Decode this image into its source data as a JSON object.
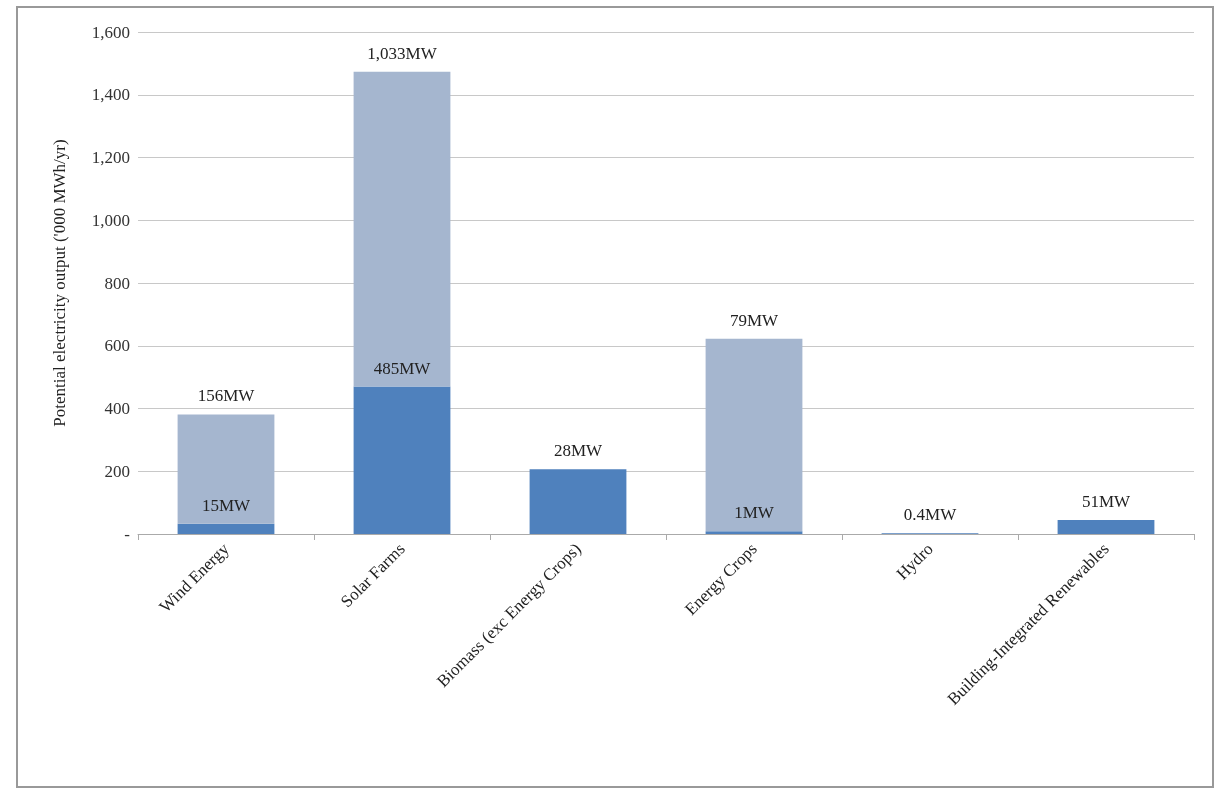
{
  "chart_data": {
    "type": "bar",
    "ylabel": "Potential electricity output ('000 MWh/yr)",
    "categories": [
      "Wind Energy",
      "Solar Farms",
      "Biomass (exc Energy Crops)",
      "Energy Crops",
      "Hydro",
      "Building-Integrated Renewables"
    ],
    "stacked": true,
    "series": [
      {
        "color": "#4f81bd",
        "values": [
          33,
          470,
          206,
          9,
          2,
          45
        ]
      },
      {
        "color": "#a5b6cf",
        "values": [
          348,
          1003,
          null,
          613,
          null,
          null
        ]
      }
    ],
    "annotations": [
      {
        "text": "15MW",
        "x": "Wind Energy",
        "y": 33
      },
      {
        "text": "156MW",
        "x": "Wind Energy",
        "y": 381
      },
      {
        "text": "485MW",
        "x": "Solar Farms",
        "y": 470
      },
      {
        "text": "1,033MW",
        "x": "Solar Farms",
        "y": 1473
      },
      {
        "text": "28MW",
        "x": "Biomass (exc Energy Crops)",
        "y": 206
      },
      {
        "text": "1MW",
        "x": "Energy Crops",
        "y": 9
      },
      {
        "text": "79MW",
        "x": "Energy Crops",
        "y": 622
      },
      {
        "text": "0.4MW",
        "x": "Hydro",
        "y": 2
      },
      {
        "text": "51MW",
        "x": "Building-Integrated Renewables",
        "y": 45
      }
    ],
    "ylim": [
      0,
      1600
    ],
    "yticks": [
      {
        "value": 0,
        "label": "-"
      },
      200,
      400,
      600,
      800,
      {
        "value": 1000,
        "label": "1,000"
      },
      {
        "value": 1200,
        "label": "1,200"
      },
      {
        "value": 1400,
        "label": "1,400"
      },
      {
        "value": 1600,
        "label": "1,600"
      }
    ],
    "grid": "y"
  }
}
